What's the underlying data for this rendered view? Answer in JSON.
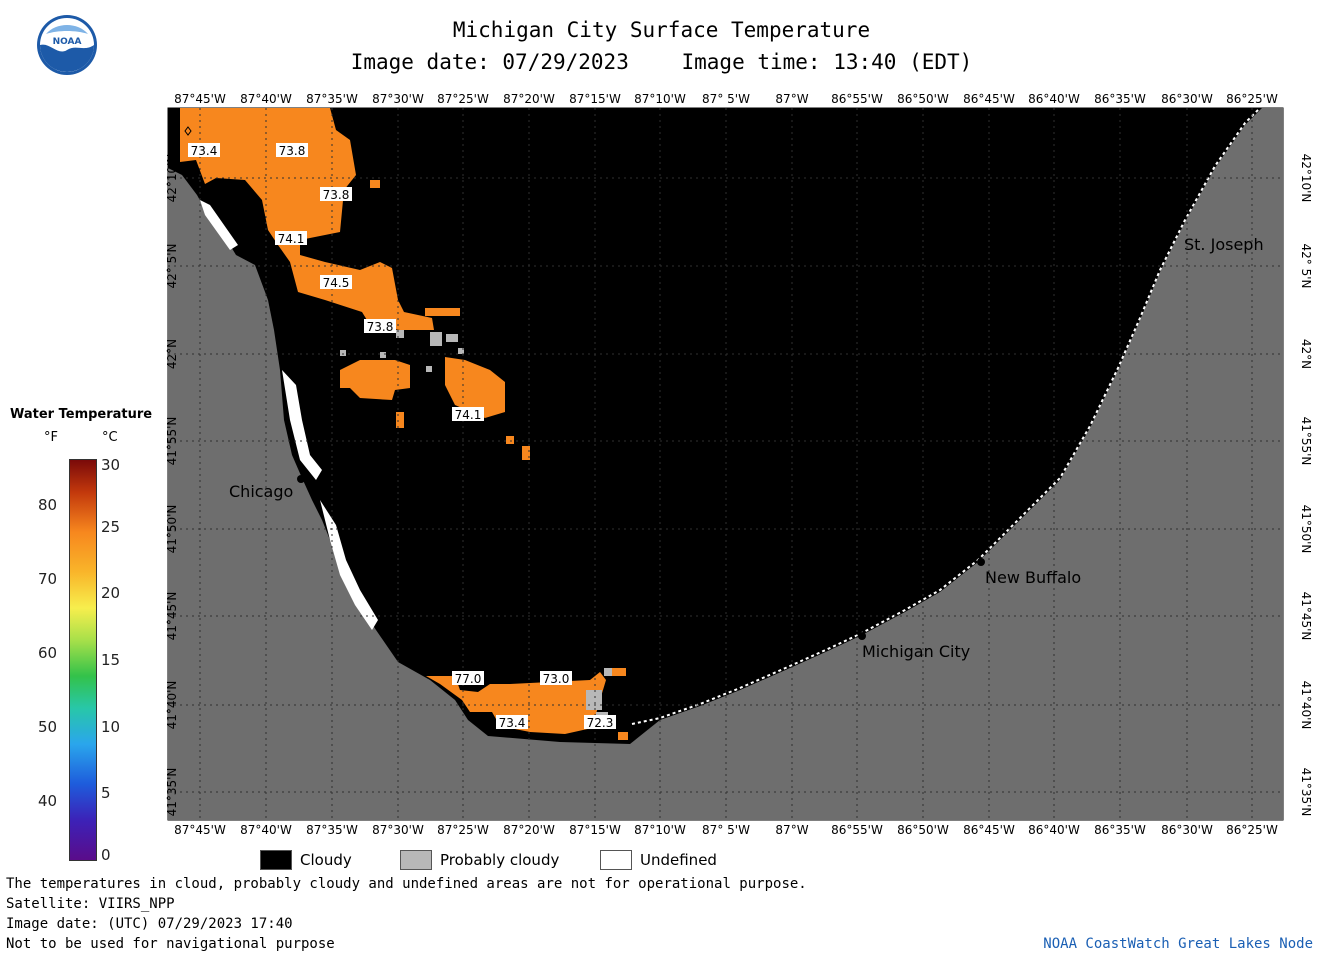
{
  "header": {
    "title": "Michigan City Surface Temperature",
    "image_date": "Image date: 07/29/2023",
    "image_time": "Image time: 13:40 (EDT)"
  },
  "logo": {
    "text": "NOAA",
    "icon": "noaa-logo-icon"
  },
  "map": {
    "lon_labels": [
      "87°45'W",
      "87°40'W",
      "87°35'W",
      "87°30'W",
      "87°25'W",
      "87°20'W",
      "87°15'W",
      "87°10'W",
      "87° 5'W",
      "87°W",
      "86°55'W",
      "86°50'W",
      "86°45'W",
      "86°40'W",
      "86°35'W",
      "86°30'W",
      "86°25'W"
    ],
    "lat_labels": [
      "42°10'N",
      "42° 5'N",
      "42°N",
      "41°55'N",
      "41°50'N",
      "41°45'N",
      "41°40'N",
      "41°35'N"
    ],
    "cities": [
      {
        "name": "Chicago"
      },
      {
        "name": "Michigan City"
      },
      {
        "name": "New Buffalo"
      },
      {
        "name": "St. Joseph"
      }
    ],
    "temp_labels": [
      "73.4",
      "73.8",
      "73.8",
      "74.1",
      "74.5",
      "73.8",
      "74.1",
      "77.0",
      "73.0",
      "73.4",
      "72.3"
    ],
    "colors": {
      "land": "#6e6e6e",
      "cloud": "#000000",
      "warm_water": "#f7871e",
      "probably_cloudy": "#b8b8b8",
      "undefined": "#ffffff"
    }
  },
  "legend": {
    "title": "Water Temperature",
    "unit_f": "°F",
    "unit_c": "°C",
    "f_ticks": [
      "80",
      "70",
      "60",
      "50",
      "40"
    ],
    "c_ticks": [
      "30",
      "25",
      "20",
      "15",
      "10",
      "5",
      "0"
    ]
  },
  "key": {
    "cloudy": "Cloudy",
    "probably_cloudy": "Probably cloudy",
    "undefined": "Undefined"
  },
  "footer": {
    "line1": "The temperatures in cloud, probably cloudy and undefined areas are not for operational purpose.",
    "line2": "Satellite: VIIRS_NPP",
    "line3": "Image date: (UTC) 07/29/2023  17:40",
    "line4": "Not to be used for navigational purpose",
    "credit": "NOAA CoastWatch Great Lakes Node"
  }
}
